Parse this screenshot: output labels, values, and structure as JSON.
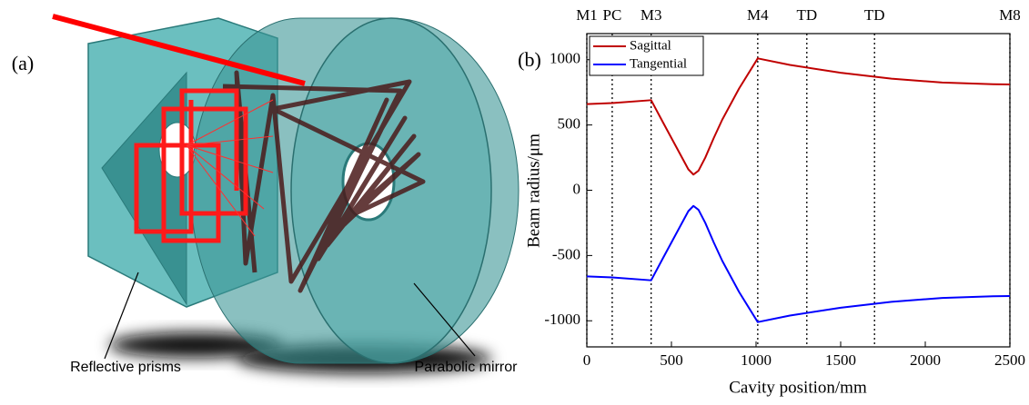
{
  "panel_a": {
    "label": "(a)",
    "annotations": [
      "Reflective prisms",
      "Parabolic mirror"
    ]
  },
  "chart_data": {
    "type": "line",
    "panel_label": "(b)",
    "xlabel": "Cavity position/mm",
    "ylabel": "Beam radius/μm",
    "x": [
      0,
      150,
      380,
      450,
      500,
      550,
      600,
      630,
      660,
      700,
      750,
      800,
      900,
      1010,
      1200,
      1500,
      1800,
      2100,
      2400,
      2500
    ],
    "series": [
      {
        "name": "Sagittal",
        "color": "#c00000",
        "values": [
          660,
          668,
          690,
          520,
          400,
          280,
          160,
          120,
          150,
          250,
          400,
          540,
          780,
          1010,
          960,
          900,
          855,
          825,
          812,
          810
        ]
      },
      {
        "name": "Tangential",
        "color": "#0000ff",
        "values": [
          -660,
          -668,
          -690,
          -520,
          -400,
          -280,
          -160,
          -120,
          -150,
          -250,
          -400,
          -540,
          -780,
          -1010,
          -960,
          -900,
          -855,
          -825,
          -812,
          -810
        ]
      }
    ],
    "markers": [
      {
        "x": 0,
        "label": "M1"
      },
      {
        "x": 150,
        "label": "PC"
      },
      {
        "x": 380,
        "label": "M3"
      },
      {
        "x": 1010,
        "label": "M4"
      },
      {
        "x": 1300,
        "label": "TD"
      },
      {
        "x": 1700,
        "label": "TD"
      },
      {
        "x": 2500,
        "label": "M8"
      }
    ],
    "xlim": [
      0,
      2500
    ],
    "ylim": [
      -1200,
      1200
    ],
    "xticks": [
      0,
      500,
      1000,
      1500,
      2000,
      2500
    ],
    "yticks": [
      -1000,
      -500,
      0,
      500,
      1000
    ],
    "grid": false,
    "legend": "upper left"
  }
}
